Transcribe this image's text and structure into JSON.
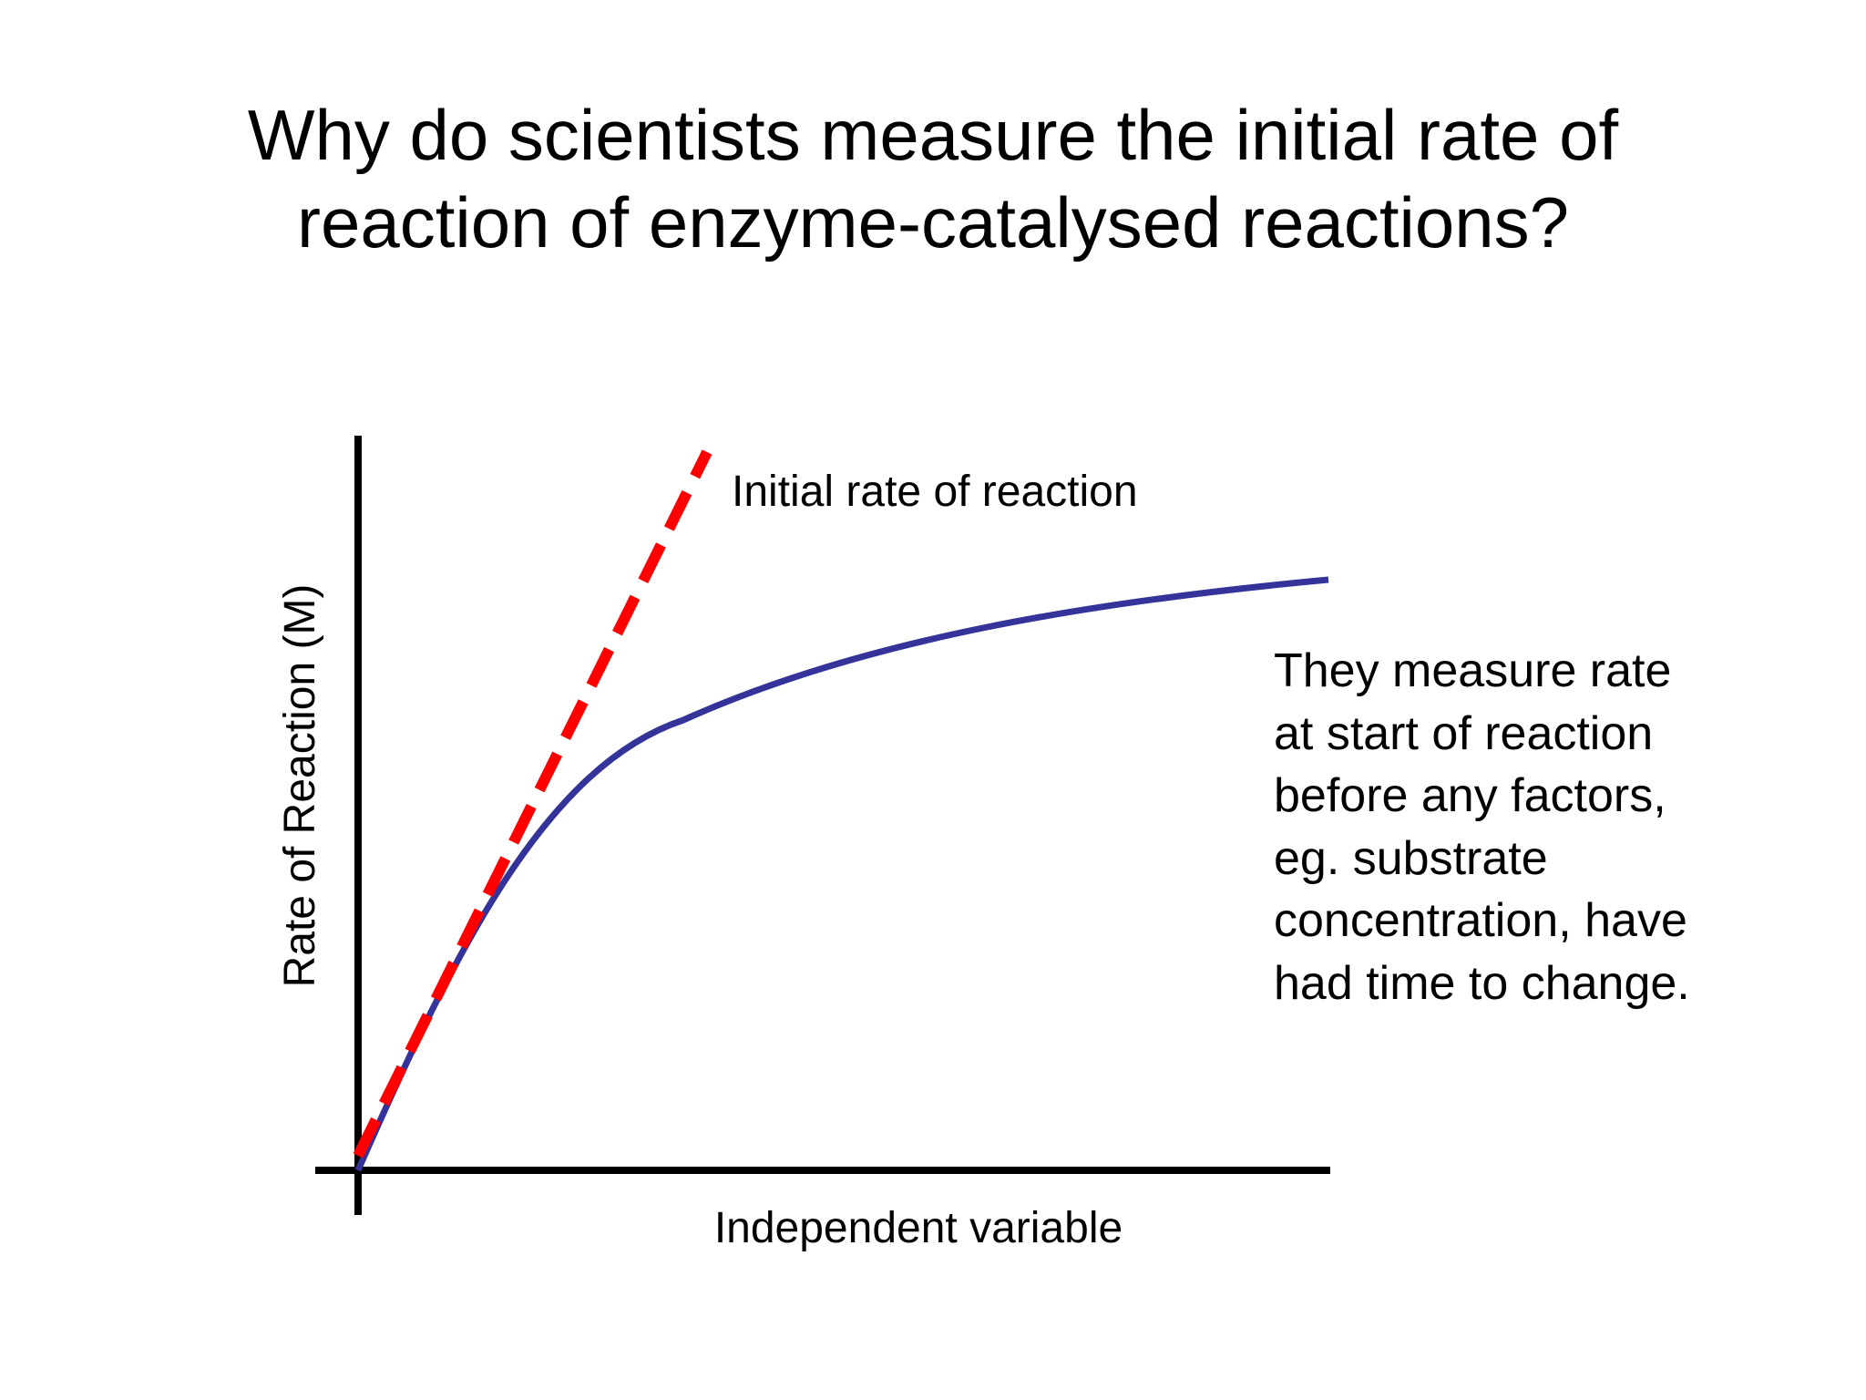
{
  "slide": {
    "title_lines": [
      "Why do scientists measure the initial rate of",
      "reaction of enzyme-catalysed reactions?"
    ],
    "colors": {
      "curve": "#333399",
      "initial_rate_line": "#ff0000",
      "axes": "#000000"
    }
  },
  "diagram": {
    "y_axis_label": "Rate of Reaction (M)",
    "x_axis_label": "Independent variable",
    "dashed_line_label": "Initial rate of reaction"
  },
  "explanation": {
    "lines": [
      "They measure rate",
      "at start of reaction",
      "before any factors,",
      "eg. substrate",
      "concentration, have",
      "had time to change."
    ]
  }
}
